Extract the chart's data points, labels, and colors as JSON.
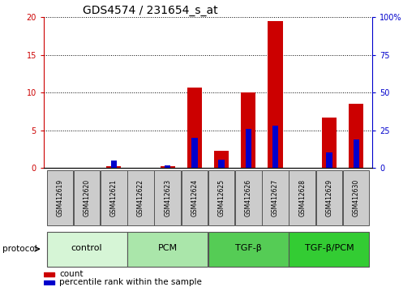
{
  "title": "GDS4574 / 231654_s_at",
  "samples": [
    "GSM412619",
    "GSM412620",
    "GSM412621",
    "GSM412622",
    "GSM412623",
    "GSM412624",
    "GSM412625",
    "GSM412626",
    "GSM412627",
    "GSM412628",
    "GSM412629",
    "GSM412630"
  ],
  "count_values": [
    0,
    0,
    0.25,
    0,
    0.2,
    10.7,
    2.3,
    10.0,
    19.5,
    0,
    6.7,
    8.5
  ],
  "percentile_values": [
    0,
    0,
    5.0,
    0,
    1.5,
    20.0,
    5.5,
    26.0,
    28.0,
    0,
    10.5,
    19.0
  ],
  "groups": [
    {
      "label": "control",
      "span": [
        0,
        3
      ],
      "color": "#d6f5d6"
    },
    {
      "label": "PCM",
      "span": [
        3,
        6
      ],
      "color": "#aae6aa"
    },
    {
      "label": "TGF-β",
      "span": [
        6,
        9
      ],
      "color": "#55cc55"
    },
    {
      "label": "TGF-β/PCM",
      "span": [
        9,
        12
      ],
      "color": "#33cc33"
    }
  ],
  "count_color": "#cc0000",
  "percentile_color": "#0000cc",
  "bar_width": 0.55,
  "pct_bar_width": 0.22,
  "ylim_left": [
    0,
    20
  ],
  "ylim_right": [
    0,
    100
  ],
  "yticks_left": [
    0,
    5,
    10,
    15,
    20
  ],
  "yticks_right": [
    0,
    25,
    50,
    75,
    100
  ],
  "ytick_labels_left": [
    "0",
    "5",
    "10",
    "15",
    "20"
  ],
  "ytick_labels_right": [
    "0",
    "25",
    "50",
    "75",
    "100%"
  ],
  "left_axis_color": "#cc0000",
  "right_axis_color": "#0000cc",
  "protocol_label": "protocol",
  "legend_count": "count",
  "legend_percentile": "percentile rank within the sample",
  "title_fontsize": 10,
  "tick_fontsize": 7,
  "sample_fontsize": 5.5,
  "group_fontsize": 8,
  "legend_fontsize": 7.5
}
